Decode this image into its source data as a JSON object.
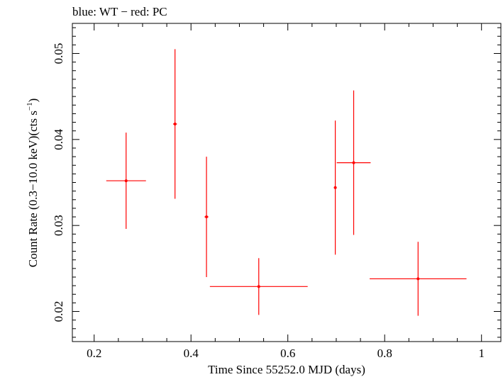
{
  "chart_data": {
    "type": "scatter",
    "title": "blue: WT − red: PC",
    "xlabel": "Time Since 55252.0 MJD (days)",
    "ylabel": {
      "main": "Count Rate (0.3−10.0 keV)(cts s",
      "sup": "−1",
      "close": ")"
    },
    "xlim": [
      0.155,
      1.04
    ],
    "ylim": [
      0.0165,
      0.0535
    ],
    "xticks": [
      0.2,
      0.4,
      0.6,
      0.8,
      1.0
    ],
    "xtick_labels": [
      "0.2",
      "0.4",
      "0.6",
      "0.8",
      "1"
    ],
    "yticks": [
      0.02,
      0.03,
      0.04,
      0.05
    ],
    "ytick_labels": [
      "0.02",
      "0.03",
      "0.04",
      "0.05"
    ],
    "grid": false,
    "series": [
      {
        "color": "#ff0000",
        "points": [
          {
            "x": 0.266,
            "xerr": 0.041,
            "y": 0.0352,
            "yerr": 0.0056
          },
          {
            "x": 0.367,
            "xerr": 0.004,
            "y": 0.0418,
            "yerr": 0.0087
          },
          {
            "x": 0.432,
            "xerr": 0.004,
            "y": 0.031,
            "yerr": 0.007
          },
          {
            "x": 0.54,
            "xerr": 0.101,
            "y": 0.0229,
            "yerr": 0.0033
          },
          {
            "x": 0.698,
            "xerr": 0.003,
            "y": 0.0344,
            "yerr": 0.0078
          },
          {
            "x": 0.736,
            "xerr": 0.035,
            "y": 0.0373,
            "yerr": 0.0084
          },
          {
            "x": 0.869,
            "xerr": 0.1,
            "y": 0.0238,
            "yerr": 0.0043
          }
        ]
      }
    ]
  }
}
